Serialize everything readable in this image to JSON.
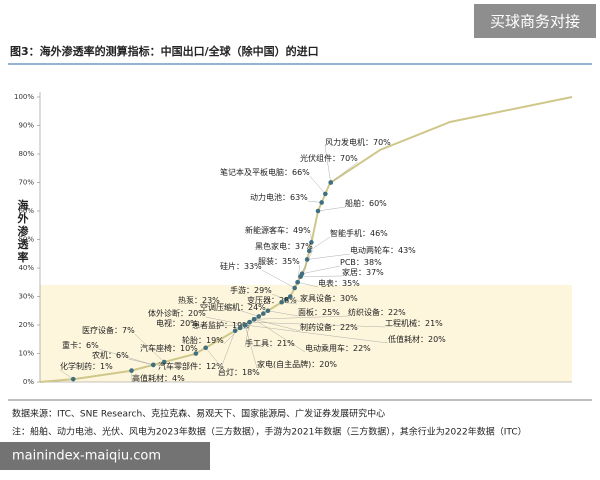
{
  "chart_data": {
    "type": "scatter",
    "title": "图3：海外渗透率的测算指标：中国出口/全球（除中国）的进口",
    "y_label": "海外渗透率",
    "ylim": [
      0,
      100
    ],
    "yticks": [
      {
        "value": 0,
        "label": "0%"
      },
      {
        "value": 10,
        "label": "10%"
      },
      {
        "value": 20,
        "label": "20%"
      },
      {
        "value": 30,
        "label": "30%"
      },
      {
        "value": 40,
        "label": "40%"
      },
      {
        "value": 50,
        "label": "50%"
      },
      {
        "value": 60,
        "label": "60%"
      },
      {
        "value": 70,
        "label": "70%"
      },
      {
        "value": 80,
        "label": "80%"
      },
      {
        "value": 90,
        "label": "90%"
      },
      {
        "value": 100,
        "label": "100%"
      }
    ],
    "color": "#3f6f80",
    "curve_color": "#cfc78a",
    "categories": [
      "风力发电机：",
      "光伏组件：",
      "笔记本及平板电脑：",
      "动力电池：",
      "船舶：",
      "新能源客车：",
      "智能手机：",
      "黑色家电：",
      "电动两轮车：",
      "服装：",
      "PCB：",
      "硅片：",
      "家居：",
      "电表：",
      "手游：",
      "热泵：",
      "变压器：",
      "家具设备：",
      "空调压缩机：",
      "纺织设备：",
      "面板：",
      "体外诊断：",
      "电视：",
      "患者监护：",
      "工程机械：",
      "制药设备：",
      "低值耗材：",
      "轮胎：",
      "医疗设备：",
      "重卡：",
      "农机：",
      "汽车座椅：",
      "电动乘用车：",
      "手工具：",
      "家电(自主品牌)：",
      "汽车零部件：",
      "化学制药：",
      "台灯：",
      "高值耗材："
    ],
    "values": [
      70,
      70,
      66,
      63,
      60,
      49,
      46,
      37,
      43,
      35,
      38,
      33,
      37,
      35,
      29,
      23,
      28,
      30,
      24,
      22,
      25,
      20,
      20,
      19,
      21,
      22,
      20,
      19,
      7,
      6,
      6,
      10,
      22,
      21,
      20,
      12,
      1,
      18,
      4
    ],
    "value_labels": [
      "70%",
      "70%",
      "66%",
      "63%",
      "60%",
      "49%",
      "46%",
      "37%",
      "43%",
      "35%",
      "38%",
      "33%",
      "37%",
      "35%",
      "29%",
      "23%",
      "28%",
      "30%",
      "24%",
      "22%",
      "25%",
      "20%",
      "20%",
      "19%",
      "21%",
      "22%",
      "20%",
      "19%",
      "7%",
      "6%",
      "6%",
      "10%",
      "22%",
      "21%",
      "20%",
      "12%",
      "1%",
      "18%",
      "4%"
    ],
    "source": "数据来源：ITC、SNE Research、克拉克森、易观天下、国家能源局、广发证券发展研究中心",
    "note": "注：船舶、动力电池、光伏、风电为2023年数据（三方数据），手游为2021年数据（三方数据），其余行业为2022年数据（ITC）"
  },
  "watermarks": {
    "top": "买球商务对接",
    "bottom": "mainindex-maiqiu.com"
  }
}
